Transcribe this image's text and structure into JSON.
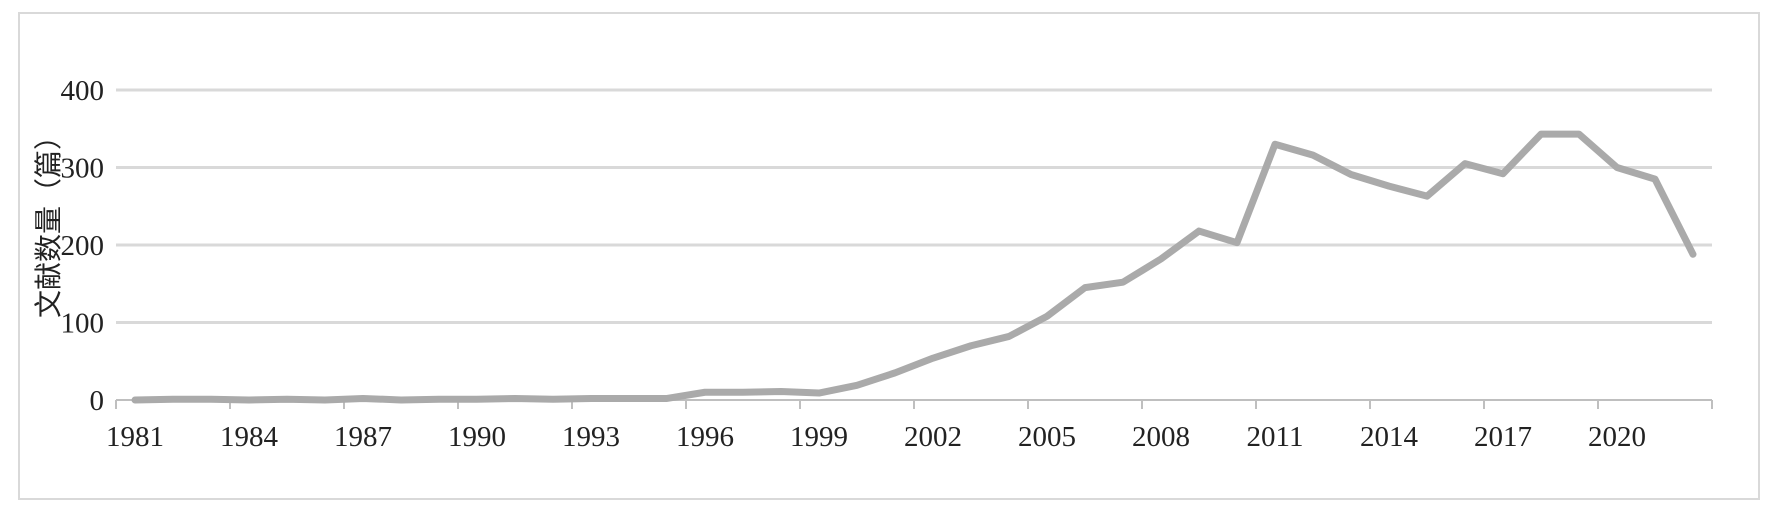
{
  "chart_data": {
    "type": "line",
    "ylabel": "文献数量（篇）",
    "xlabel": "",
    "title": "",
    "ylim": [
      0,
      400
    ],
    "yticks": [
      0,
      100,
      200,
      300,
      400
    ],
    "xticks": [
      1981,
      1984,
      1987,
      1990,
      1993,
      1996,
      1999,
      2002,
      2005,
      2008,
      2011,
      2014,
      2017,
      2020
    ],
    "grid": true,
    "legend": "none",
    "colors": {
      "line": "#aaaaaa",
      "grid": "#d9d9d9",
      "axis": "#bfbfbf"
    },
    "series": [
      {
        "x": [
          1981,
          1982,
          1983,
          1984,
          1985,
          1986,
          1987,
          1988,
          1989,
          1990,
          1991,
          1992,
          1993,
          1994,
          1995,
          1996,
          1997,
          1998,
          1999,
          2000,
          2001,
          2002,
          2003,
          2004,
          2005,
          2006,
          2007,
          2008,
          2009,
          2010,
          2011,
          2012,
          2013,
          2014,
          2015,
          2016,
          2017,
          2018,
          2019,
          2020,
          2021,
          2022
        ],
        "values": [
          0,
          1,
          1,
          0,
          1,
          0,
          2,
          0,
          1,
          1,
          2,
          1,
          2,
          2,
          2,
          10,
          10,
          11,
          9,
          19,
          35,
          54,
          70,
          82,
          108,
          145,
          152,
          182,
          218,
          203,
          330,
          316,
          291,
          276,
          263,
          305,
          292,
          343,
          343,
          300,
          285,
          188
        ]
      }
    ]
  }
}
